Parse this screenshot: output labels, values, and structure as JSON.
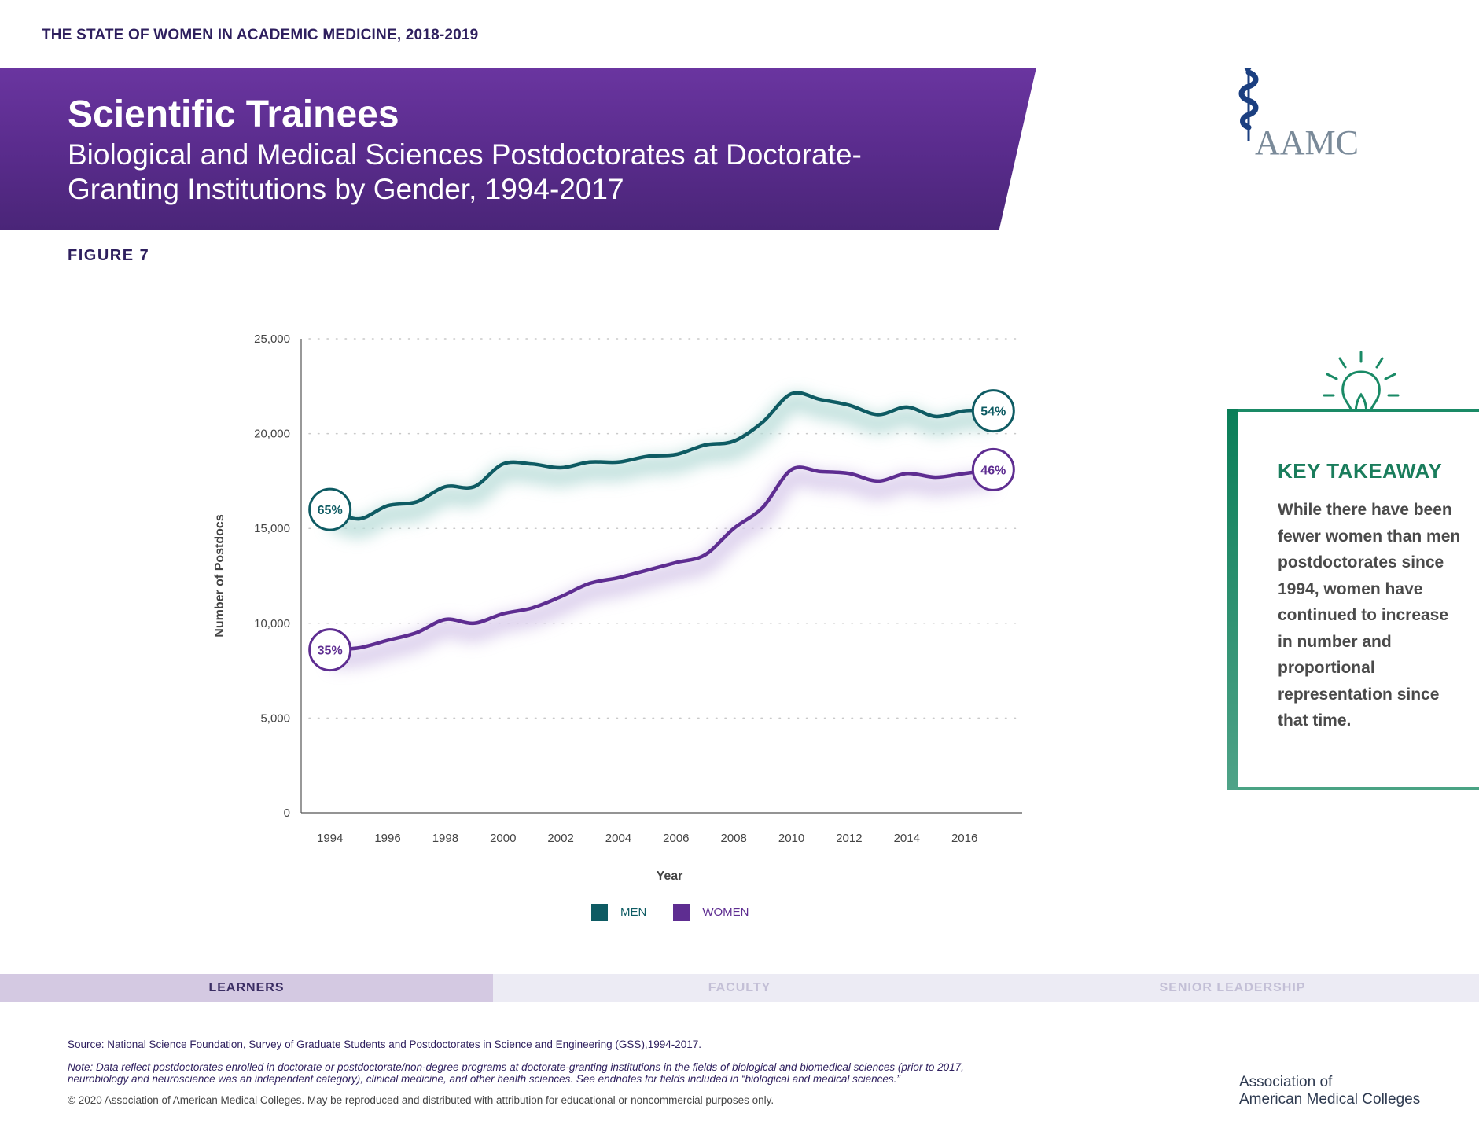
{
  "header": {
    "report_title": "THE STATE OF WOMEN IN ACADEMIC MEDICINE, 2018-2019",
    "title": "Scientific Trainees",
    "subtitle": "Biological and Medical Sciences Postdoctorates at Doctorate-Granting Institutions by Gender, 1994-2017",
    "figure": "FIGURE 7"
  },
  "logo": {
    "text": "AAMC",
    "icon": "caduceus-icon"
  },
  "colors": {
    "men": "#0e5b63",
    "women": "#5e2d91",
    "banner": "#5a2c8d",
    "takeaway": "#1a7d5c"
  },
  "chart_data": {
    "type": "line",
    "x": [
      1994,
      1995,
      1996,
      1997,
      1998,
      1999,
      2000,
      2001,
      2002,
      2003,
      2004,
      2005,
      2006,
      2007,
      2008,
      2009,
      2010,
      2011,
      2012,
      2013,
      2014,
      2015,
      2016,
      2017
    ],
    "series": [
      {
        "name": "MEN",
        "values": [
          16000,
          15500,
          16200,
          16400,
          17200,
          17200,
          18400,
          18400,
          18200,
          18500,
          18500,
          18800,
          18900,
          19400,
          19600,
          20600,
          22100,
          21800,
          21500,
          21000,
          21400,
          20900,
          21200,
          21200
        ]
      },
      {
        "name": "WOMEN",
        "values": [
          8600,
          8700,
          9100,
          9500,
          10200,
          10000,
          10500,
          10800,
          11400,
          12100,
          12400,
          12800,
          13200,
          13600,
          15000,
          16100,
          18100,
          18000,
          17900,
          17500,
          17900,
          17700,
          17900,
          18100
        ]
      }
    ],
    "end_labels": {
      "men_start": "65%",
      "women_start": "35%",
      "men_end": "54%",
      "women_end": "46%"
    },
    "x_ticks": [
      "1994",
      "1996",
      "1998",
      "2000",
      "2002",
      "2004",
      "2006",
      "2008",
      "2010",
      "2012",
      "2014",
      "2016"
    ],
    "y_ticks": [
      "0",
      "5,000",
      "10,000",
      "15,000",
      "20,000",
      "25,000"
    ],
    "xlabel": "Year",
    "ylabel": "Number of Postdocs",
    "ylim": [
      0,
      25000
    ],
    "xlim": [
      1993,
      2018
    ],
    "grid": "dotted-horizontal",
    "legend": "bottom-center"
  },
  "takeaway": {
    "title": "KEY TAKEAWAY",
    "text": "While there have been fewer women than men postdoctorates since 1994, women have continued to increase in number and proportional representation since that time.",
    "icon": "lightbulb-icon"
  },
  "nav": {
    "tabs": [
      "LEARNERS",
      "FACULTY",
      "SENIOR LEADERSHIP"
    ],
    "active": "LEARNERS"
  },
  "footer": {
    "source": "Source: National Science Foundation, Survey of Graduate Students and Postdoctorates in Science and Engineering (GSS),1994-2017.",
    "note": "Note: Data reflect postdoctorates enrolled in doctorate or postdoctorate/non-degree programs at doctorate-granting institutions in the fields of biological and biomedical sciences (prior to 2017, neurobiology and neuroscience was an independent category), clinical medicine, and other health sciences. See endnotes for fields included in “biological and medical sciences.”",
    "copyright": "© 2020 Association of American Medical Colleges. May be reproduced and distributed with attribution for educational or noncommercial purposes only.",
    "org_line1": "Association of",
    "org_line2": "American Medical Colleges"
  }
}
